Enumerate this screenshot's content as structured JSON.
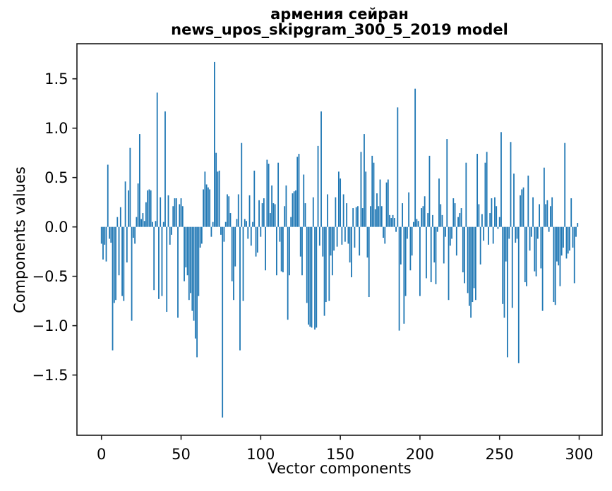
{
  "figure": {
    "title_line1": "армения сейран",
    "title_line2": "news_upos_skipgram_300_5_2019 model",
    "xlabel": "Vector components",
    "ylabel": "Components values"
  },
  "chart_data": {
    "type": "bar",
    "title": "армения сейран",
    "subtitle": "news_upos_skipgram_300_5_2019 model",
    "xlabel": "Vector components",
    "ylabel": "Components values",
    "x_meaning": "vector component index 0..299",
    "n_bars": 300,
    "bar_color": "#1f77b4",
    "bar_width": 0.8,
    "xlim": [
      -15.4,
      314.4
    ],
    "ylim": [
      -2.11,
      1.855
    ],
    "xticks": [
      0,
      50,
      100,
      150,
      200,
      250,
      300
    ],
    "yticks": [
      -1.5,
      -1.0,
      -0.5,
      0.0,
      0.5,
      1.0,
      1.5
    ],
    "grid": false,
    "legend_position": "none",
    "values": [
      -0.17,
      -0.33,
      -0.18,
      -0.35,
      0.63,
      -0.12,
      -0.16,
      -1.25,
      -0.77,
      -0.74,
      0.1,
      -0.49,
      0.2,
      -0.7,
      -0.75,
      0.46,
      -0.36,
      0.37,
      0.8,
      -0.95,
      -0.11,
      -0.17,
      0.1,
      0.44,
      0.94,
      0.08,
      0.14,
      0.06,
      0.25,
      0.37,
      0.38,
      0.37,
      0.05,
      -0.64,
      0.06,
      1.36,
      -0.73,
      0.3,
      -0.7,
      0.05,
      1.17,
      -0.86,
      0.32,
      -0.18,
      -0.08,
      0.21,
      0.29,
      0.29,
      -0.92,
      0.23,
      0.29,
      0.21,
      -0.55,
      -0.41,
      -0.49,
      -0.74,
      -0.67,
      -0.85,
      -0.95,
      -1.13,
      -1.32,
      -0.7,
      -0.21,
      -0.17,
      0.38,
      0.56,
      0.43,
      0.4,
      0.38,
      -0.1,
      0.05,
      1.67,
      0.75,
      0.56,
      0.57,
      -0.08,
      -1.93,
      -0.15,
      0.05,
      0.33,
      0.31,
      0.14,
      -0.55,
      -0.74,
      -0.4,
      0.08,
      0.33,
      -1.25,
      0.85,
      -0.75,
      0.08,
      0.06,
      -0.12,
      0.32,
      -0.19,
      0.05,
      0.57,
      -0.3,
      -0.26,
      0.27,
      -0.1,
      0.24,
      0.29,
      -0.44,
      0.68,
      0.64,
      0.14,
      0.42,
      0.24,
      0.23,
      -0.49,
      0.65,
      -0.15,
      -0.45,
      -0.46,
      0.21,
      0.42,
      -0.94,
      -0.49,
      0.1,
      0.34,
      0.36,
      0.37,
      0.71,
      0.74,
      -0.3,
      -0.49,
      0.53,
      0.24,
      -0.77,
      -0.99,
      -1.01,
      -1.02,
      0.3,
      -1.04,
      -1.02,
      0.82,
      -0.19,
      1.17,
      -0.3,
      -0.9,
      -0.76,
      0.33,
      -0.75,
      -0.29,
      -0.49,
      -0.24,
      0.3,
      -0.2,
      0.56,
      0.49,
      -0.18,
      0.33,
      -0.15,
      0.24,
      -0.17,
      -0.36,
      -0.51,
      0.19,
      -0.21,
      0.2,
      0.21,
      -0.29,
      0.76,
      0.19,
      0.94,
      0.56,
      -0.31,
      -0.71,
      0.21,
      0.72,
      0.65,
      0.18,
      0.34,
      0.21,
      0.48,
      0.21,
      -0.11,
      -0.17,
      0.45,
      0.48,
      0.12,
      0.09,
      0.12,
      0.09,
      -0.05,
      1.21,
      -1.05,
      -0.38,
      0.24,
      -0.98,
      -0.7,
      -0.12,
      0.35,
      -0.44,
      -0.29,
      0.05,
      1.4,
      0.08,
      0.06,
      -0.7,
      0.19,
      0.21,
      0.31,
      -0.52,
      0.14,
      0.72,
      -0.56,
      0.12,
      -0.36,
      -0.58,
      -0.05,
      0.49,
      0.23,
      0.12,
      -0.37,
      -0.1,
      0.89,
      -0.74,
      -0.19,
      -0.12,
      0.29,
      0.24,
      -0.29,
      0.1,
      0.14,
      0.19,
      -0.46,
      -0.57,
      0.65,
      -0.67,
      -0.8,
      -0.92,
      -0.76,
      -0.62,
      -0.74,
      0.74,
      0.23,
      -0.38,
      0.13,
      -0.14,
      0.65,
      0.76,
      -0.18,
      0.14,
      0.29,
      -0.17,
      0.3,
      0.21,
      -0.02,
      0.1,
      0.96,
      -0.78,
      -0.92,
      -0.35,
      -1.32,
      -0.12,
      0.86,
      -0.82,
      0.54,
      -0.16,
      -0.12,
      -1.38,
      0.32,
      0.38,
      0.4,
      -0.56,
      -0.6,
      0.52,
      -0.24,
      -0.1,
      0.3,
      -0.45,
      -0.5,
      -0.12,
      0.23,
      -0.42,
      -0.85,
      0.6,
      0.23,
      0.27,
      -0.05,
      0.21,
      0.3,
      -0.76,
      -0.79,
      -0.35,
      -0.39,
      -0.6,
      -0.29,
      -0.21,
      0.85,
      -0.32,
      -0.27,
      -0.24,
      0.29,
      -0.21,
      -0.57,
      -0.1,
      0.04
    ]
  },
  "style": {
    "background": "#ffffff",
    "spine_color": "#1a1a1a",
    "text_color": "#000000"
  }
}
